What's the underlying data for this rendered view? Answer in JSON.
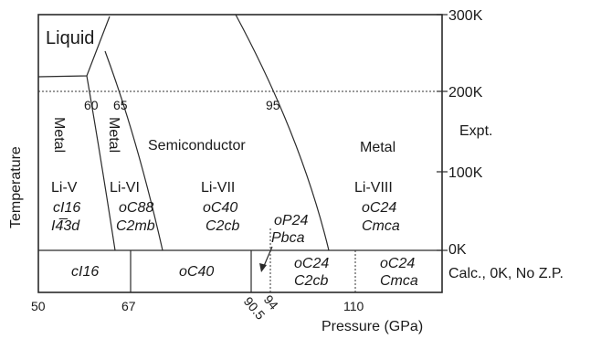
{
  "diagram": {
    "y_axis_title": "Temperature",
    "x_axis_title": "Pressure (GPa)",
    "right_ticks": [
      "300K",
      "200K",
      "100K",
      "0K"
    ],
    "expt_label": "Expt.",
    "calc_label": "Calc., 0K, No Z.P.",
    "x_ticks": [
      "50",
      "67",
      "90.5",
      "94",
      "110"
    ],
    "liquid": "Liquid",
    "boundary_labels": [
      "60",
      "65",
      "95"
    ],
    "regions": {
      "metal_left": "Metal",
      "metal_mid": "Metal",
      "semiconductor": "Semiconductor",
      "metal_right": "Metal"
    },
    "phases": [
      {
        "name": "Li-V",
        "struct": "cI16",
        "group": "I4̅3d"
      },
      {
        "name": "Li-VI",
        "struct": "oC88",
        "group": "C2mb"
      },
      {
        "name": "Li-VII",
        "struct": "oC40",
        "group": "C2cb"
      },
      {
        "name": "",
        "struct": "oP24",
        "group": "Pbca"
      },
      {
        "name": "Li-VIII",
        "struct": "oC24",
        "group": "Cmca"
      }
    ],
    "calc_phases": [
      {
        "struct": "cI16"
      },
      {
        "struct": "oC40"
      },
      {
        "struct": "oC24",
        "group": "C2cb"
      },
      {
        "struct": "oC24",
        "group": "Cmca"
      }
    ]
  }
}
